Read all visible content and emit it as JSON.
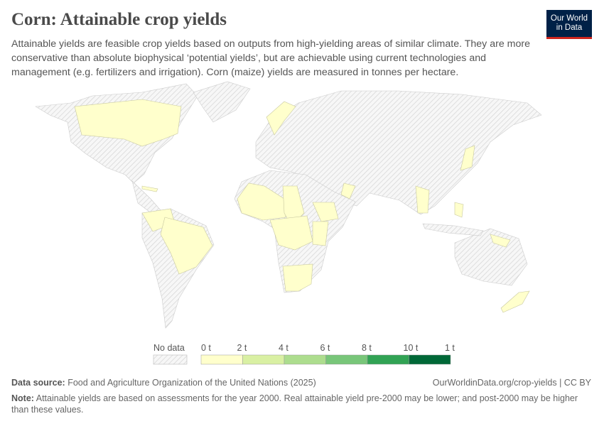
{
  "header": {
    "title": "Corn: Attainable crop yields",
    "subtitle": "Attainable yields are feasible crop yields based on outputs from high-yielding areas of similar climate. They are more conservative than absolute biophysical ‘potential yields’, but are achievable using current technologies and management (e.g. fertilizers and irrigation). Corn (maize) yields are measured in tonnes per hectare.",
    "logo": "Our World in Data"
  },
  "legend": {
    "no_data_label": "No data",
    "ticks": [
      "0 t",
      "2 t",
      "4 t",
      "6 t",
      "8 t",
      "10 t",
      "1 t"
    ],
    "colors": [
      "#ffffcc",
      "#d9f0a3",
      "#addd8e",
      "#78c679",
      "#31a354",
      "#006837"
    ],
    "no_data_color": "#e6e6e6"
  },
  "map": {
    "highlight_color": "#ffffcc",
    "border_color": "#c8c8a0"
  },
  "footer": {
    "source_label": "Data source:",
    "source": "Food and Agriculture Organization of the United Nations (2025)",
    "url": "OurWorldinData.org/crop-yields | CC BY",
    "note_label": "Note:",
    "note": "Attainable yields are based on assessments for the year 2000. Real attainable yield pre-2000 may be lower; and post-2000 may be higher than these values."
  }
}
